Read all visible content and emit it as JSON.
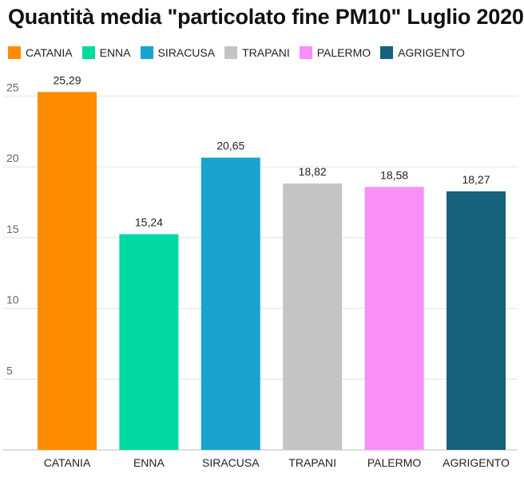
{
  "chart_data": {
    "type": "bar",
    "title": "Quantità media \"particolato fine PM10\" Luglio 2020",
    "categories": [
      "CATANIA",
      "ENNA",
      "SIRACUSA",
      "TRAPANI",
      "PALERMO",
      "AGRIGENTO"
    ],
    "values": [
      25.29,
      15.24,
      20.65,
      18.82,
      18.58,
      18.27
    ],
    "value_labels": [
      "25,29",
      "15,24",
      "20,65",
      "18,82",
      "18,58",
      "18,27"
    ],
    "colors": [
      "#FF8C00",
      "#00D9A2",
      "#19A4CF",
      "#C4C4C4",
      "#FA8FF7",
      "#16627D"
    ],
    "yticks": [
      5,
      10,
      15,
      20,
      25
    ],
    "ylim": [
      0,
      25.7
    ],
    "grid": true,
    "legend": "top-left",
    "xlabel": "",
    "ylabel": ""
  }
}
